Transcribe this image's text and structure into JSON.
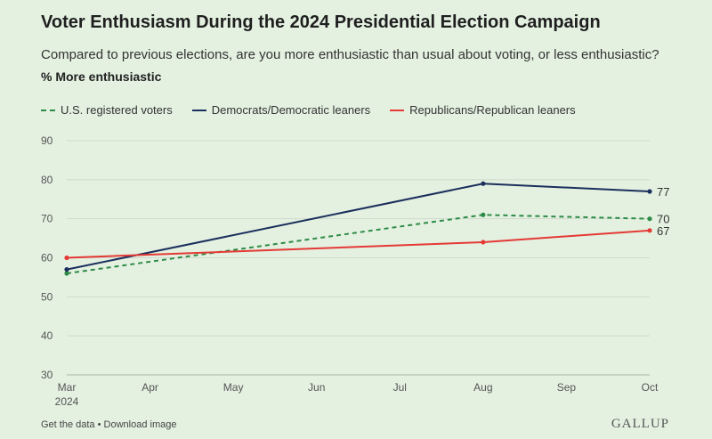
{
  "header": {
    "title": "Voter Enthusiasm During the 2024 Presidential Election Campaign",
    "subtitle": "Compared to previous elections, are you more enthusiastic than usual about voting, or less enthusiastic?",
    "measure_label": "% More enthusiastic"
  },
  "legend": {
    "items": [
      {
        "label": "U.S. registered voters",
        "color": "#2e8b47",
        "style": "dashed"
      },
      {
        "label": "Democrats/Democratic leaners",
        "color": "#1b2f5c",
        "style": "solid"
      },
      {
        "label": "Republicans/Republican leaners",
        "color": "#e53935",
        "style": "solid"
      }
    ]
  },
  "chart_data": {
    "type": "line",
    "x": [
      "Mar",
      "Apr",
      "May",
      "Jun",
      "Jul",
      "Aug",
      "Sep",
      "Oct"
    ],
    "x_sublabel_first": "2024",
    "ylim": [
      30,
      90
    ],
    "y_ticks": [
      30,
      40,
      50,
      60,
      70,
      80,
      90
    ],
    "grid": true,
    "legend_placement": "top-left",
    "series": [
      {
        "name": "U.S. registered voters",
        "color": "#2e8b47",
        "dashed": true,
        "points": [
          {
            "x": "Mar",
            "y": 56
          },
          {
            "x": "Aug",
            "y": 71
          },
          {
            "x": "Oct",
            "y": 70
          }
        ],
        "end_label": "70"
      },
      {
        "name": "Democrats/Democratic leaners",
        "color": "#1b2f5c",
        "dashed": false,
        "points": [
          {
            "x": "Mar",
            "y": 57
          },
          {
            "x": "Aug",
            "y": 79
          },
          {
            "x": "Oct",
            "y": 77
          }
        ],
        "end_label": "77"
      },
      {
        "name": "Republicans/Republican leaners",
        "color": "#e53935",
        "dashed": false,
        "points": [
          {
            "x": "Mar",
            "y": 60
          },
          {
            "x": "Aug",
            "y": 64
          },
          {
            "x": "Oct",
            "y": 67
          }
        ],
        "end_label": "67"
      }
    ]
  },
  "footer": {
    "get_data": "Get the data",
    "separator": "•",
    "download": "Download image",
    "brand": "GALLUP"
  }
}
